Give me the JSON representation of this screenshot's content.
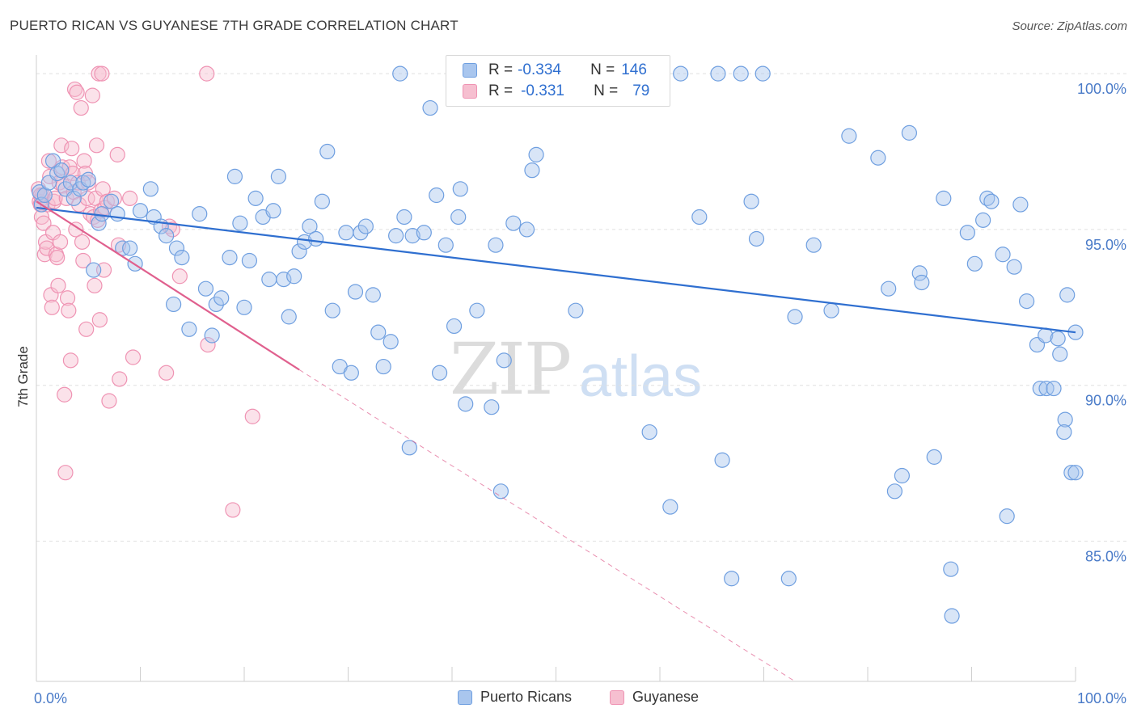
{
  "title": "PUERTO RICAN VS GUYANESE 7TH GRADE CORRELATION CHART",
  "source_label": "Source: ZipAtlas.com",
  "watermark": {
    "zip": "ZIP",
    "atlas": "atlas"
  },
  "colors": {
    "blue_fill": "#a9c6ee",
    "blue_stroke": "#6f9fe0",
    "blue_line": "#2f6fd0",
    "pink_fill": "#f6bfd0",
    "pink_stroke": "#ef93b3",
    "pink_line": "#e0608e",
    "grid": "#e0e0e0",
    "tick_text": "#4a7bc8"
  },
  "stats_box": {
    "rows": [
      {
        "series": "Puerto Ricans",
        "r_label": "R = ",
        "r_value": "-0.334",
        "n_label": "N = ",
        "n_value": "146"
      },
      {
        "series": "Guyanese",
        "r_label": "R = ",
        "r_value": "-0.331",
        "n_label": "N = ",
        "n_value": "79"
      }
    ]
  },
  "legend": [
    {
      "label": "Puerto Ricans",
      "color": "blue"
    },
    {
      "label": "Guyanese",
      "color": "pink"
    }
  ],
  "chart_data": {
    "type": "scatter",
    "title": "PUERTO RICAN VS GUYANESE 7TH GRADE CORRELATION CHART",
    "xlabel": "",
    "ylabel": "7th Grade",
    "xlim": [
      0,
      100
    ],
    "ylim": [
      80.5,
      100.6
    ],
    "x_ticks": [
      {
        "value": 0,
        "label": "0.0%"
      },
      {
        "value": 100,
        "label": "100.0%"
      }
    ],
    "y_ticks": [
      {
        "value": 85,
        "label": "85.0%"
      },
      {
        "value": 90,
        "label": "90.0%"
      },
      {
        "value": 95,
        "label": "95.0%"
      },
      {
        "value": 100,
        "label": "100.0%"
      }
    ],
    "grid": true,
    "legend_position": "bottom",
    "series": [
      {
        "name": "Puerto Ricans",
        "color": "blue",
        "trend": {
          "x": [
            0,
            100
          ],
          "y": [
            95.7,
            91.7
          ],
          "style": "solid"
        },
        "points": [
          [
            0.3,
            96.2
          ],
          [
            0.5,
            95.8
          ],
          [
            0.8,
            96.1
          ],
          [
            1.2,
            96.5
          ],
          [
            1.6,
            97.2
          ],
          [
            2.0,
            96.8
          ],
          [
            2.4,
            96.9
          ],
          [
            2.8,
            96.3
          ],
          [
            3.3,
            96.5
          ],
          [
            3.6,
            96.0
          ],
          [
            4.2,
            96.3
          ],
          [
            4.5,
            96.5
          ],
          [
            5.0,
            96.6
          ],
          [
            5.5,
            93.7
          ],
          [
            6.0,
            95.2
          ],
          [
            6.3,
            95.5
          ],
          [
            7.2,
            95.9
          ],
          [
            7.8,
            95.5
          ],
          [
            8.3,
            94.4
          ],
          [
            9.0,
            94.4
          ],
          [
            9.5,
            93.9
          ],
          [
            10.0,
            95.6
          ],
          [
            11.0,
            96.3
          ],
          [
            11.3,
            95.4
          ],
          [
            12.0,
            95.1
          ],
          [
            12.5,
            94.8
          ],
          [
            13.2,
            92.6
          ],
          [
            13.5,
            94.4
          ],
          [
            14.0,
            94.1
          ],
          [
            14.7,
            91.8
          ],
          [
            15.7,
            95.5
          ],
          [
            16.3,
            93.1
          ],
          [
            16.9,
            91.6
          ],
          [
            17.3,
            92.6
          ],
          [
            17.8,
            92.8
          ],
          [
            18.6,
            94.1
          ],
          [
            19.1,
            96.7
          ],
          [
            19.6,
            95.2
          ],
          [
            20.0,
            92.5
          ],
          [
            20.5,
            94.0
          ],
          [
            21.1,
            96.0
          ],
          [
            21.8,
            95.4
          ],
          [
            22.4,
            93.4
          ],
          [
            22.8,
            95.6
          ],
          [
            23.3,
            96.7
          ],
          [
            23.8,
            93.4
          ],
          [
            24.3,
            92.2
          ],
          [
            24.8,
            93.5
          ],
          [
            25.3,
            94.3
          ],
          [
            25.8,
            94.6
          ],
          [
            26.3,
            95.1
          ],
          [
            26.9,
            94.7
          ],
          [
            27.5,
            95.9
          ],
          [
            28.0,
            97.5
          ],
          [
            28.5,
            92.4
          ],
          [
            29.2,
            90.6
          ],
          [
            29.8,
            94.9
          ],
          [
            30.3,
            90.4
          ],
          [
            30.7,
            93.0
          ],
          [
            31.2,
            94.9
          ],
          [
            31.7,
            95.1
          ],
          [
            32.4,
            92.9
          ],
          [
            32.9,
            91.7
          ],
          [
            33.4,
            90.6
          ],
          [
            34.1,
            91.4
          ],
          [
            34.6,
            94.8
          ],
          [
            35.0,
            100.0
          ],
          [
            35.4,
            95.4
          ],
          [
            35.9,
            88.0
          ],
          [
            36.2,
            94.8
          ],
          [
            37.3,
            94.9
          ],
          [
            37.9,
            98.9
          ],
          [
            38.5,
            96.1
          ],
          [
            38.8,
            90.4
          ],
          [
            39.4,
            94.5
          ],
          [
            40.2,
            91.9
          ],
          [
            40.6,
            95.4
          ],
          [
            40.8,
            96.3
          ],
          [
            41.3,
            89.4
          ],
          [
            42.4,
            92.4
          ],
          [
            43.8,
            89.3
          ],
          [
            44.2,
            94.5
          ],
          [
            44.7,
            86.6
          ],
          [
            45.0,
            90.8
          ],
          [
            45.9,
            95.2
          ],
          [
            46.3,
            99.9
          ],
          [
            47.2,
            95.0
          ],
          [
            47.7,
            96.9
          ],
          [
            48.1,
            97.4
          ],
          [
            49.5,
            100.0
          ],
          [
            51.0,
            100.0
          ],
          [
            51.9,
            92.4
          ],
          [
            53.0,
            99.9
          ],
          [
            55.5,
            100.0
          ],
          [
            57.0,
            99.9
          ],
          [
            59.0,
            88.5
          ],
          [
            60.0,
            100.0
          ],
          [
            61.0,
            86.1
          ],
          [
            62.0,
            100.0
          ],
          [
            63.8,
            95.4
          ],
          [
            65.6,
            100.0
          ],
          [
            66.0,
            87.6
          ],
          [
            66.9,
            83.8
          ],
          [
            67.8,
            100.0
          ],
          [
            68.8,
            95.9
          ],
          [
            69.9,
            100.0
          ],
          [
            69.3,
            94.7
          ],
          [
            72.4,
            83.8
          ],
          [
            73.0,
            92.2
          ],
          [
            74.8,
            94.5
          ],
          [
            76.5,
            92.4
          ],
          [
            78.2,
            98.0
          ],
          [
            81.0,
            97.3
          ],
          [
            82.0,
            93.1
          ],
          [
            82.6,
            86.6
          ],
          [
            83.3,
            87.1
          ],
          [
            84.0,
            98.1
          ],
          [
            85.0,
            93.6
          ],
          [
            85.2,
            93.3
          ],
          [
            86.4,
            87.7
          ],
          [
            87.3,
            96.0
          ],
          [
            88.0,
            84.1
          ],
          [
            88.1,
            82.6
          ],
          [
            89.6,
            94.9
          ],
          [
            90.3,
            93.9
          ],
          [
            91.1,
            95.3
          ],
          [
            91.5,
            96.0
          ],
          [
            91.9,
            95.9
          ],
          [
            93.0,
            94.2
          ],
          [
            93.4,
            85.8
          ],
          [
            94.1,
            93.8
          ],
          [
            94.7,
            95.8
          ],
          [
            95.3,
            92.7
          ],
          [
            96.3,
            91.3
          ],
          [
            96.6,
            89.9
          ],
          [
            97.2,
            89.9
          ],
          [
            97.1,
            91.6
          ],
          [
            97.9,
            89.9
          ],
          [
            98.5,
            91.0
          ],
          [
            99.2,
            92.9
          ],
          [
            99.6,
            87.2
          ],
          [
            98.3,
            91.5
          ],
          [
            99.0,
            88.9
          ],
          [
            98.9,
            88.5
          ],
          [
            100.0,
            87.2
          ],
          [
            100.0,
            91.7
          ]
        ]
      },
      {
        "name": "Guyanese",
        "color": "pink",
        "trend": {
          "x": [
            0,
            25.3
          ],
          "y": [
            95.9,
            90.5
          ],
          "style": "solid",
          "extension": {
            "x": [
              25.3,
              73.0
            ],
            "y": [
              90.5,
              80.5
            ],
            "style": "dashed"
          }
        },
        "points": [
          [
            0.2,
            96.3
          ],
          [
            0.3,
            95.9
          ],
          [
            0.4,
            95.8
          ],
          [
            0.5,
            95.4
          ],
          [
            0.6,
            96.1
          ],
          [
            0.7,
            95.2
          ],
          [
            0.8,
            94.2
          ],
          [
            0.9,
            94.6
          ],
          [
            1.0,
            94.4
          ],
          [
            1.1,
            95.8
          ],
          [
            1.2,
            97.2
          ],
          [
            1.3,
            96.7
          ],
          [
            1.4,
            92.9
          ],
          [
            1.5,
            92.5
          ],
          [
            1.6,
            94.9
          ],
          [
            1.7,
            95.9
          ],
          [
            1.8,
            96.0
          ],
          [
            1.9,
            94.2
          ],
          [
            2.0,
            94.1
          ],
          [
            2.1,
            93.2
          ],
          [
            2.2,
            96.5
          ],
          [
            2.3,
            94.6
          ],
          [
            2.4,
            97.7
          ],
          [
            2.5,
            97.0
          ],
          [
            2.6,
            96.4
          ],
          [
            2.7,
            89.7
          ],
          [
            2.8,
            87.2
          ],
          [
            2.9,
            96.0
          ],
          [
            3.0,
            92.8
          ],
          [
            3.1,
            92.4
          ],
          [
            3.2,
            97.0
          ],
          [
            3.3,
            90.8
          ],
          [
            3.4,
            97.6
          ],
          [
            3.5,
            96.8
          ],
          [
            3.6,
            96.2
          ],
          [
            3.7,
            99.5
          ],
          [
            3.8,
            95.0
          ],
          [
            3.9,
            99.4
          ],
          [
            4.0,
            96.5
          ],
          [
            4.1,
            95.8
          ],
          [
            4.3,
            98.9
          ],
          [
            4.4,
            94.6
          ],
          [
            4.5,
            94.0
          ],
          [
            4.6,
            97.2
          ],
          [
            4.7,
            96.8
          ],
          [
            4.8,
            91.8
          ],
          [
            4.9,
            96.0
          ],
          [
            5.0,
            96.5
          ],
          [
            5.2,
            95.5
          ],
          [
            5.4,
            99.3
          ],
          [
            5.5,
            95.4
          ],
          [
            5.6,
            93.2
          ],
          [
            5.7,
            96.0
          ],
          [
            5.8,
            97.7
          ],
          [
            5.9,
            95.3
          ],
          [
            6.0,
            100.0
          ],
          [
            6.1,
            92.1
          ],
          [
            6.2,
            95.6
          ],
          [
            6.3,
            100.0
          ],
          [
            6.4,
            96.3
          ],
          [
            6.5,
            93.7
          ],
          [
            6.6,
            95.7
          ],
          [
            6.8,
            95.9
          ],
          [
            7.0,
            89.5
          ],
          [
            7.5,
            96.0
          ],
          [
            7.8,
            97.4
          ],
          [
            7.9,
            94.5
          ],
          [
            8.0,
            90.2
          ],
          [
            9.3,
            90.9
          ],
          [
            9.0,
            96.0
          ],
          [
            12.5,
            90.4
          ],
          [
            12.8,
            95.1
          ],
          [
            13.1,
            95.0
          ],
          [
            13.8,
            93.5
          ],
          [
            16.4,
            100.0
          ],
          [
            16.5,
            91.3
          ],
          [
            18.9,
            86.0
          ],
          [
            20.8,
            89.0
          ],
          [
            0.4,
            96.1
          ]
        ]
      }
    ]
  }
}
